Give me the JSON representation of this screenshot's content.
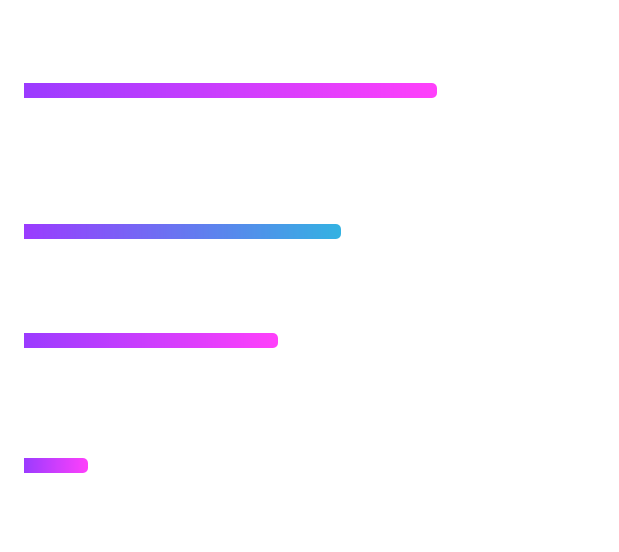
{
  "progress_bars": [
    {
      "name": "progress-bar-1",
      "value_fraction": 0.861,
      "color_start": "#9b3bff",
      "color_end": "#ff40fb"
    },
    {
      "name": "progress-bar-2",
      "value_fraction": 0.66,
      "color_start": "#9b3bff",
      "color_end": "#33b2e2"
    },
    {
      "name": "progress-bar-3",
      "value_fraction": 0.529,
      "color_start": "#9b3bff",
      "color_end": "#ff40fb"
    },
    {
      "name": "progress-bar-4",
      "value_fraction": 0.133,
      "color_start": "#9b3bff",
      "color_end": "#ff40fb"
    }
  ]
}
